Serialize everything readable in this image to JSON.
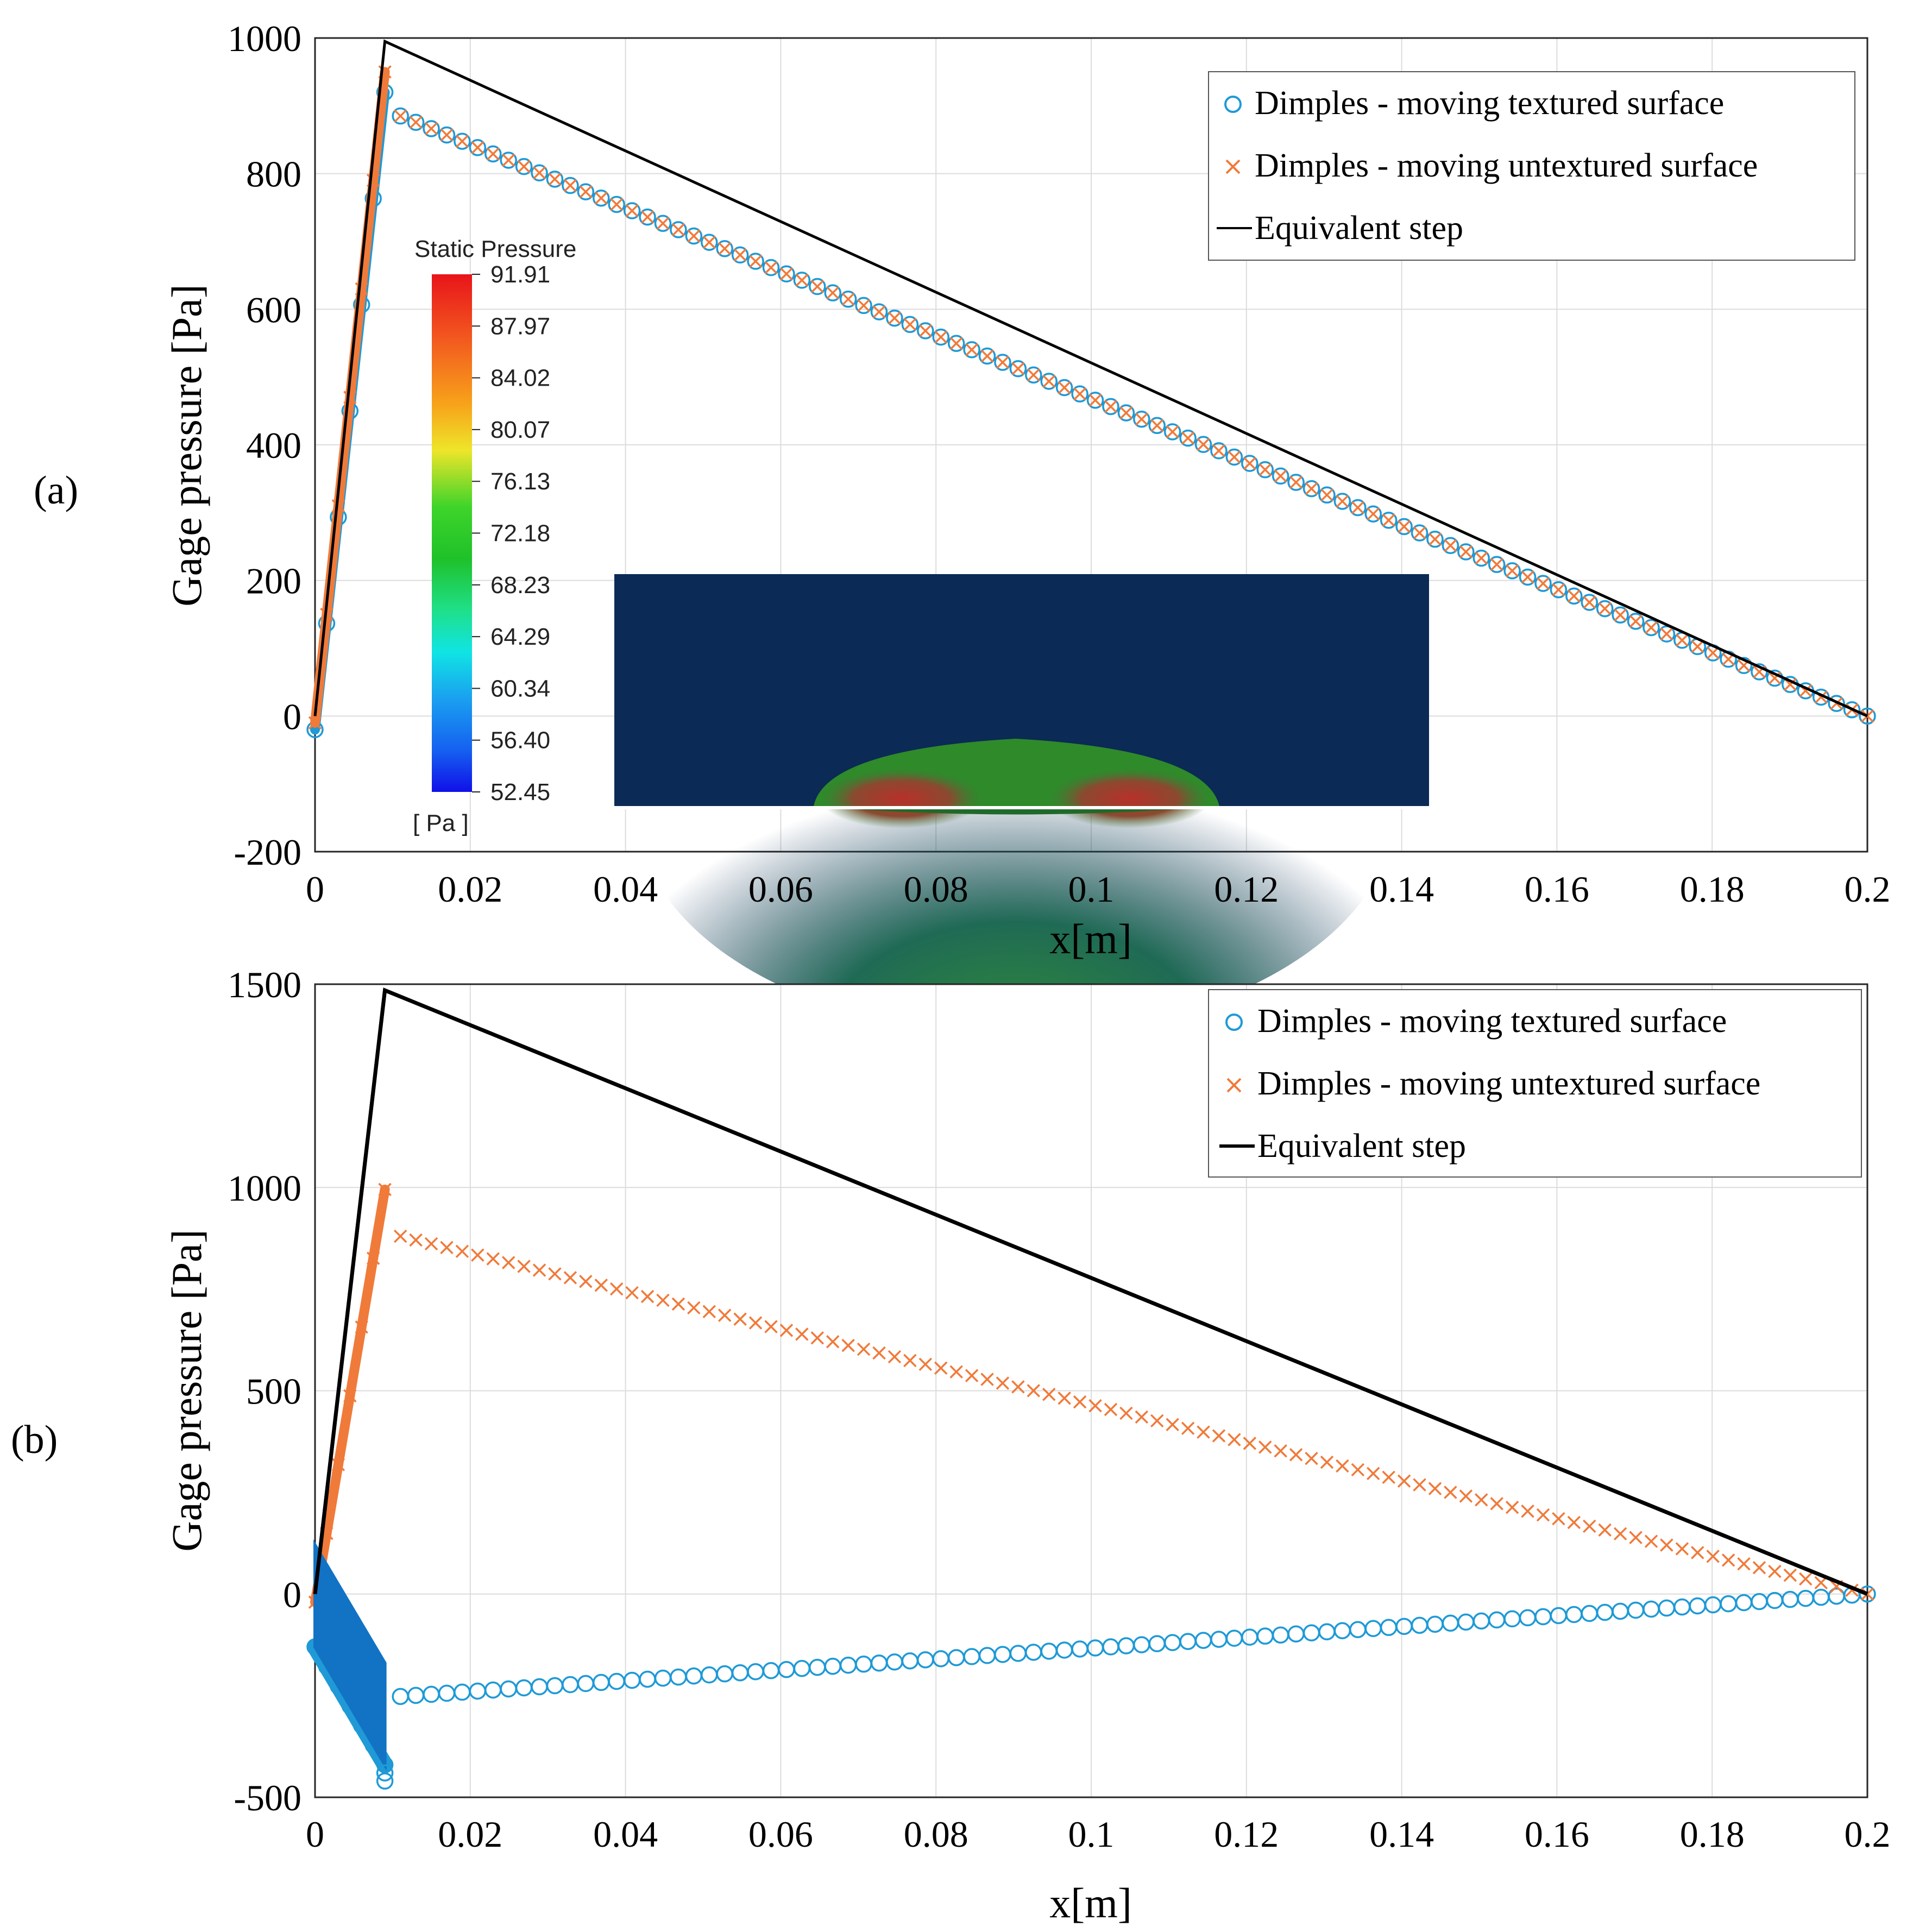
{
  "panels": [
    {
      "label": "(a)",
      "legend": [
        {
          "marker": "circle",
          "color": "#1f9ad6",
          "text": "Dimples - moving textured surface"
        },
        {
          "marker": "cross",
          "color": "#f07a3a",
          "text": "Dimples - moving untextured surface"
        },
        {
          "marker": "line",
          "color": "#000000",
          "text": "Equivalent step"
        }
      ],
      "inset": {
        "title": "Static Pressure",
        "unit": "[ Pa ]",
        "ticks": [
          "91.91",
          "87.97",
          "84.02",
          "80.07",
          "76.13",
          "72.18",
          "68.23",
          "64.29",
          "60.34",
          "56.40",
          "52.45"
        ]
      }
    },
    {
      "label": "(b)",
      "legend": [
        {
          "marker": "circle",
          "color": "#1f9ad6",
          "text": "Dimples - moving textured surface"
        },
        {
          "marker": "cross",
          "color": "#f07a3a",
          "text": "Dimples - moving untextured surface"
        },
        {
          "marker": "line",
          "color": "#000000",
          "text": "Equivalent step"
        }
      ]
    }
  ],
  "chart_data": [
    {
      "type": "scatter",
      "title": "",
      "xlabel": "x[m]",
      "ylabel": "Gage pressure [Pa]",
      "xlim": [
        0,
        0.2
      ],
      "ylim": [
        -200,
        1000
      ],
      "xticks": [
        0,
        0.02,
        0.04,
        0.06,
        0.08,
        0.1,
        0.12,
        0.14,
        0.16,
        0.18,
        0.2
      ],
      "xtick_labels": [
        "0",
        "0.02",
        "0.04",
        "0.06",
        "0.08",
        "0.1",
        "0.12",
        "0.14",
        "0.16",
        "0.18",
        "0.2"
      ],
      "yticks": [
        -200,
        0,
        200,
        400,
        600,
        800,
        1000
      ],
      "ytick_labels": [
        "-200",
        "0",
        "200",
        "400",
        "600",
        "800",
        "1000"
      ],
      "grid": true,
      "legend_position": "top-right",
      "series": [
        {
          "name": "Dimples - moving textured surface",
          "marker": "circle",
          "color": "#1f9ad6",
          "ramp": {
            "x": [
              0,
              0.009
            ],
            "y": [
              -20,
              920
            ]
          },
          "decline": {
            "x": [
              0.011,
              0.2
            ],
            "y": [
              885,
              0
            ],
            "count": 96
          }
        },
        {
          "name": "Dimples - moving untextured surface",
          "marker": "cross",
          "color": "#f07a3a",
          "ramp": {
            "x": [
              0,
              0.009
            ],
            "y": [
              -10,
              950
            ]
          },
          "decline": {
            "x": [
              0.011,
              0.2
            ],
            "y": [
              885,
              0
            ],
            "count": 96
          }
        },
        {
          "name": "Equivalent step",
          "marker": "line",
          "color": "#000000",
          "x": [
            0,
            0.009,
            0.2
          ],
          "y": [
            0,
            995,
            0
          ]
        }
      ]
    },
    {
      "type": "scatter",
      "title": "",
      "xlabel": "x[m]",
      "ylabel": "Gage pressure [Pa]",
      "xlim": [
        0,
        0.2
      ],
      "ylim": [
        -500,
        1500
      ],
      "xticks": [
        0,
        0.02,
        0.04,
        0.06,
        0.08,
        0.1,
        0.12,
        0.14,
        0.16,
        0.18,
        0.2
      ],
      "xtick_labels": [
        "0",
        "0.02",
        "0.04",
        "0.06",
        "0.08",
        "0.1",
        "0.12",
        "0.14",
        "0.16",
        "0.18",
        "0.2"
      ],
      "yticks": [
        -500,
        0,
        500,
        1000,
        1500
      ],
      "ytick_labels": [
        "-500",
        "0",
        "500",
        "1000",
        "1500"
      ],
      "grid": true,
      "legend_position": "top-right",
      "series": [
        {
          "name": "Dimples - moving textured surface",
          "marker": "circle",
          "color": "#1f9ad6",
          "ramp": {
            "x": [
              0,
              0.009
            ],
            "y": [
              -130,
              -420
            ]
          },
          "decline": {
            "x": [
              0.011,
              0.2
            ],
            "y": [
              -252,
              0
            ],
            "count": 96
          }
        },
        {
          "name": "Dimples - moving untextured surface",
          "marker": "cross",
          "color": "#f07a3a",
          "ramp": {
            "x": [
              0,
              0.009
            ],
            "y": [
              -20,
              995
            ]
          },
          "decline": {
            "x": [
              0.011,
              0.2
            ],
            "y": [
              880,
              0
            ],
            "count": 96
          }
        },
        {
          "name": "Equivalent step",
          "marker": "line",
          "color": "#000000",
          "x": [
            0,
            0.009,
            0.2
          ],
          "y": [
            0,
            1485,
            0
          ]
        }
      ]
    }
  ]
}
